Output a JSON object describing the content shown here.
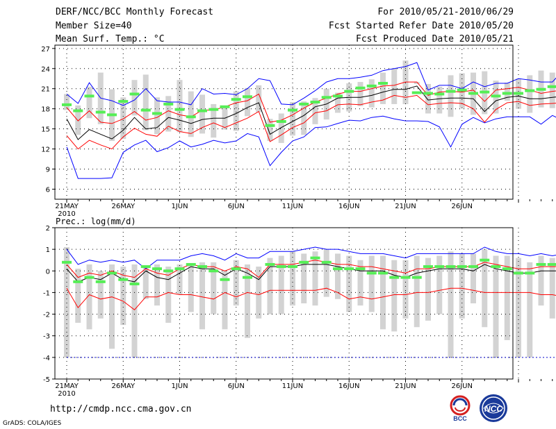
{
  "header": {
    "title": "DERF/NCC/BCC Monthly Forecast",
    "member_size": "Member Size=40",
    "variable_1": "Mean Surf. Temp.: °C",
    "period": "For 2010/05/21-2010/06/29",
    "started": "Fcst Started Refer Date 2010/05/20",
    "produced": "Fcst Produced Date 2010/05/21"
  },
  "footer": {
    "url": "http://cmdp.ncc.cma.gov.cn",
    "grads": "GrADS: COLA/IGES",
    "logo_bcc": "BCC",
    "logo_ncc": "NCC"
  },
  "chart_data": [
    {
      "type": "line",
      "title": "Mean Surf. Temp.: °C",
      "x_start_day": 1,
      "x_tick_labels": [
        "21MAY",
        "26MAY",
        "1JUN",
        "6JUN",
        "11JUN",
        "16JUN",
        "21JUN",
        "26JUN"
      ],
      "x_year_label": "2010",
      "ylim": [
        4.5,
        27.5
      ],
      "y_ticks": [
        6,
        9,
        12,
        15,
        18,
        21,
        24,
        27
      ],
      "series": [
        {
          "name": "max",
          "color": "#0000ff",
          "values": [
            12.3,
            7.6,
            7.6,
            7.6,
            7.7,
            11.5,
            12.6,
            13.3,
            11.6,
            12.2,
            13.2,
            12.3,
            12.7,
            13.3,
            12.9,
            13.2,
            14.3,
            13.8,
            9.5,
            11.5,
            13.2,
            13.8,
            15.2,
            15.3,
            15.8,
            16.3,
            16.2,
            16.7,
            16.9,
            16.5,
            16.2,
            16.2,
            16.1,
            15.3,
            12.3,
            15.7,
            16.7,
            15.9,
            16.5,
            16.8,
            16.8,
            16.8,
            15.7,
            17.0,
            16.2,
            17.4,
            17.2,
            18.0
          ]
        },
        {
          "name": "upper",
          "color": "#0000ff",
          "values": [
            20.2,
            18.8,
            21.9,
            19.6,
            19.2,
            18.5,
            19.3,
            21.0,
            19.2,
            19.0,
            19.0,
            18.6,
            21.0,
            20.2,
            20.3,
            20.1,
            21.0,
            22.5,
            22.2,
            18.7,
            18.6,
            19.6,
            20.7,
            22.0,
            22.5,
            22.5,
            22.7,
            23.0,
            23.7,
            24.0,
            24.3,
            24.9,
            20.8,
            21.5,
            21.5,
            21.0,
            22.0,
            21.3,
            21.8,
            21.8,
            22.5,
            22.3,
            22.0,
            22.0,
            23.8,
            23.8,
            24.8,
            25.1
          ]
        },
        {
          "name": "ens_high",
          "color": "#ff0000",
          "values": [
            18.2,
            16.2,
            17.7,
            16.0,
            15.8,
            16.5,
            17.6,
            16.3,
            16.7,
            17.7,
            17.1,
            16.8,
            17.8,
            17.8,
            18.3,
            18.9,
            19.2,
            20.2,
            16.0,
            16.3,
            17.1,
            18.1,
            19.0,
            19.6,
            20.2,
            20.6,
            20.6,
            21.0,
            21.4,
            21.5,
            22.0,
            22.0,
            20.0,
            20.5,
            20.6,
            20.5,
            20.8,
            19.1,
            20.8,
            21.0,
            21.2,
            20.8,
            20.3,
            20.6,
            20.8,
            21.3,
            21.8,
            22.7
          ]
        },
        {
          "name": "ensemble_mean",
          "color": "#000000",
          "values": [
            16.5,
            13.4,
            14.9,
            14.2,
            13.5,
            14.8,
            16.7,
            15.0,
            15.2,
            16.7,
            16.3,
            15.8,
            16.4,
            16.6,
            16.6,
            17.3,
            18.2,
            18.9,
            14.2,
            15.2,
            16.1,
            17.0,
            18.3,
            18.7,
            19.6,
            19.7,
            19.7,
            20.0,
            20.5,
            20.9,
            20.9,
            21.4,
            19.3,
            19.5,
            19.6,
            19.6,
            19.5,
            17.6,
            19.2,
            19.7,
            19.9,
            19.5,
            19.5,
            19.7,
            19.9,
            20.4,
            20.7,
            21.3
          ]
        },
        {
          "name": "ens_low",
          "color": "#ff0000",
          "values": [
            14.0,
            12.0,
            13.3,
            12.6,
            12.0,
            13.8,
            15.1,
            14.2,
            13.9,
            15.4,
            14.6,
            14.3,
            15.2,
            15.9,
            15.2,
            15.9,
            16.6,
            17.6,
            13.1,
            14.1,
            15.2,
            15.9,
            17.4,
            17.7,
            18.6,
            18.7,
            18.6,
            19.0,
            19.3,
            20.0,
            19.7,
            20.0,
            18.6,
            18.8,
            18.9,
            18.8,
            18.0,
            16.0,
            17.9,
            18.9,
            19.1,
            18.5,
            18.7,
            18.8,
            18.9,
            19.1,
            19.3,
            20.6
          ]
        },
        {
          "name": "observed",
          "color": "#55ee55",
          "values": [
            18.6,
            17.7,
            19.9,
            17.5,
            17.1,
            19.1,
            20.2,
            17.8,
            17.3,
            18.7,
            17.9,
            16.8,
            17.7,
            17.9,
            18.3,
            19.4,
            19.8,
            null,
            15.5,
            16.1,
            17.8,
            18.7,
            19.0,
            19.7,
            19.9,
            20.6,
            21.1,
            21.4,
            21.8,
            null,
            null,
            20.4,
            20.3,
            20.2,
            20.6,
            20.8,
            20.3,
            20.5,
            19.9,
            20.3,
            20.3,
            20.7,
            20.9,
            21.3,
            21.7,
            22.0,
            22.4,
            22.5
          ]
        }
      ],
      "bars": [
        {
          "name": "spread",
          "color": "#d3d3d3",
          "low": [
            17.8,
            14.1,
            16.6,
            15.7,
            13.2,
            13.5,
            17.0,
            14.8,
            14.2,
            14.6,
            14.5,
            13.8,
            14.3,
            13.7,
            14.9,
            14.7,
            16.9,
            17.5,
            13.2,
            12.9,
            14.0,
            14.1,
            15.7,
            16.4,
            17.4,
            17.6,
            18.4,
            18.2,
            18.7,
            18.7,
            18.7,
            21.7,
            17.3,
            17.3,
            16.8,
            18.1,
            17.1,
            17.2,
            17.3,
            19.2,
            18.0,
            17.4,
            18.2,
            18.1,
            18.5,
            18.5,
            19.5,
            20.0
          ],
          "high": [
            20.2,
            18.5,
            21.3,
            23.4,
            20.9,
            19.7,
            22.3,
            23.1,
            19.7,
            19.9,
            22.3,
            20.6,
            20.1,
            18.7,
            18.4,
            20.6,
            21.1,
            21.5,
            16.5,
            17.3,
            19.0,
            19.1,
            19.6,
            21.0,
            20.4,
            21.8,
            22.0,
            22.4,
            23.4,
            24.0,
            25.2,
            22.0,
            21.7,
            21.3,
            23.0,
            23.3,
            23.4,
            23.6,
            22.2,
            21.9,
            22.5,
            23.0,
            23.7,
            23.4,
            25.2,
            24.6,
            25.2,
            24.8
          ]
        }
      ]
    },
    {
      "type": "line",
      "title": "Prec.: log(mm/d)",
      "x_start_day": 1,
      "x_tick_labels": [
        "21MAY",
        "26MAY",
        "1JUN",
        "6JUN",
        "11JUN",
        "16JUN",
        "21JUN",
        "26JUN"
      ],
      "x_year_label": "2010",
      "ylim": [
        -5,
        2
      ],
      "y_ticks": [
        -5,
        -4,
        -3,
        -2,
        -1,
        0,
        1,
        2
      ],
      "series": [
        {
          "name": "min",
          "color": "#0000cc",
          "dashed": true,
          "values": [
            -4.0,
            -4.0,
            -4.0,
            -4.0,
            -4.0,
            -4.0,
            -4.0,
            -4.0,
            -4.0,
            -4.0,
            -4.0,
            -4.0,
            -4.0,
            -4.0,
            -4.0,
            -4.0,
            -4.0,
            -4.0,
            -4.0,
            -4.0,
            -4.0,
            -4.0,
            -4.0,
            -4.0,
            -4.0,
            -4.0,
            -4.0,
            -4.0,
            -4.0,
            -4.0,
            -4.0,
            -4.0,
            -4.0,
            -4.0,
            -4.0,
            -4.0,
            -4.0,
            -4.0,
            -4.0,
            -4.0,
            -4.0,
            -4.0,
            -4.0,
            -4.0,
            -4.0,
            -4.0,
            -4.0,
            -4.0
          ]
        },
        {
          "name": "upper",
          "color": "#0000ff",
          "values": [
            1.0,
            0.3,
            0.5,
            0.4,
            0.5,
            0.4,
            0.5,
            0.1,
            0.5,
            0.5,
            0.5,
            0.7,
            0.8,
            0.7,
            0.5,
            0.8,
            0.6,
            0.6,
            0.9,
            0.9,
            0.9,
            1.0,
            1.1,
            1.0,
            1.0,
            0.9,
            0.8,
            0.8,
            0.8,
            0.7,
            0.6,
            0.8,
            0.8,
            0.8,
            0.8,
            0.8,
            0.8,
            1.1,
            0.9,
            0.8,
            0.8,
            0.7,
            0.8,
            0.7,
            0.8,
            0.6,
            0.6,
            1.0
          ]
        },
        {
          "name": "ens_high",
          "color": "#ff0000",
          "values": [
            0.3,
            -0.3,
            -0.1,
            -0.2,
            0.0,
            -0.2,
            -0.3,
            0.1,
            -0.1,
            -0.2,
            0.1,
            0.3,
            0.2,
            0.2,
            0.0,
            0.2,
            0.1,
            -0.3,
            0.3,
            0.3,
            0.3,
            0.4,
            0.5,
            0.4,
            0.3,
            0.3,
            0.2,
            0.2,
            0.1,
            0.0,
            -0.1,
            0.1,
            0.1,
            0.2,
            0.2,
            0.2,
            0.2,
            0.4,
            0.3,
            0.2,
            0.1,
            0.1,
            0.2,
            0.2,
            0.2,
            -0.1,
            -0.1,
            0.3
          ]
        },
        {
          "name": "ensemble_mean",
          "color": "#000000",
          "values": [
            0.1,
            -0.5,
            -0.3,
            -0.4,
            -0.1,
            -0.4,
            -0.5,
            0.0,
            -0.3,
            -0.4,
            -0.1,
            0.2,
            0.1,
            0.1,
            -0.2,
            0.1,
            -0.1,
            -0.4,
            0.2,
            0.2,
            0.2,
            0.3,
            0.3,
            0.3,
            0.2,
            0.1,
            0.0,
            0.0,
            0.0,
            -0.2,
            -0.3,
            -0.1,
            0.0,
            0.1,
            0.1,
            0.1,
            0.0,
            0.3,
            0.1,
            0.0,
            -0.1,
            -0.1,
            0.0,
            0.0,
            0.0,
            -0.2,
            -0.3,
            0.2
          ]
        },
        {
          "name": "ens_low",
          "color": "#ff0000",
          "values": [
            -0.8,
            -1.7,
            -1.1,
            -1.3,
            -1.2,
            -1.4,
            -1.8,
            -1.2,
            -1.2,
            -1.0,
            -1.1,
            -1.1,
            -1.2,
            -1.3,
            -1.0,
            -1.2,
            -1.0,
            -1.1,
            -0.9,
            -0.9,
            -0.9,
            -0.9,
            -0.9,
            -0.8,
            -1.0,
            -1.3,
            -1.2,
            -1.3,
            -1.2,
            -1.1,
            -1.1,
            -1.0,
            -1.0,
            -0.9,
            -0.8,
            -0.8,
            -0.9,
            -1.0,
            -1.0,
            -1.0,
            -1.0,
            -1.0,
            -1.1,
            -1.1,
            -1.2,
            -1.1,
            -1.3,
            -0.8
          ]
        },
        {
          "name": "observed",
          "color": "#55ee55",
          "values": [
            0.4,
            -0.5,
            -0.3,
            -0.5,
            -0.1,
            -0.4,
            -0.6,
            0.2,
            0.1,
            0.0,
            0.1,
            0.3,
            0.2,
            0.0,
            -0.4,
            0.1,
            -0.3,
            null,
            0.3,
            0.2,
            0.2,
            0.4,
            0.6,
            0.4,
            0.1,
            0.1,
            0.1,
            -0.1,
            -0.1,
            -0.3,
            -0.3,
            -0.3,
            0.2,
            0.2,
            0.2,
            0.2,
            0.2,
            0.5,
            0.2,
            0.1,
            -0.1,
            -0.1,
            0.3,
            0.3,
            0.1,
            -0.1,
            -0.1,
            0.5
          ]
        }
      ],
      "bars": [
        {
          "name": "spread",
          "color": "#d3d3d3",
          "low": [
            -4.0,
            -2.4,
            -2.7,
            -2.2,
            -3.6,
            -2.5,
            -4.0,
            -1.3,
            -1.6,
            -2.4,
            -1.1,
            -1.9,
            -2.7,
            -2.0,
            -2.7,
            -1.6,
            -3.1,
            -2.2,
            -2.0,
            -2.0,
            -1.6,
            -1.5,
            -1.6,
            -1.2,
            -1.3,
            -1.9,
            -1.6,
            -1.9,
            -2.7,
            -2.8,
            -2.2,
            -2.6,
            -2.3,
            -2.0,
            -4.0,
            -2.2,
            -1.5,
            -2.6,
            -4.0,
            -3.2,
            -4.0,
            -4.0,
            -1.6,
            -2.2,
            -4.0,
            -2.8,
            -2.9,
            -2.1
          ],
          "high": [
            1.1,
            0.1,
            0.3,
            0.0,
            0.3,
            0.2,
            0.3,
            0.2,
            0.3,
            0.2,
            0.3,
            0.3,
            0.4,
            0.4,
            0.0,
            0.5,
            0.3,
            0.2,
            0.6,
            0.7,
            0.9,
            0.8,
            0.9,
            1.0,
            0.8,
            0.7,
            0.5,
            0.7,
            0.7,
            0.5,
            0.5,
            0.7,
            0.6,
            0.7,
            0.9,
            0.8,
            0.8,
            1.0,
            0.7,
            0.7,
            0.6,
            0.4,
            0.7,
            0.6,
            0.9,
            0.3,
            0.4,
            1.1
          ]
        }
      ]
    }
  ]
}
